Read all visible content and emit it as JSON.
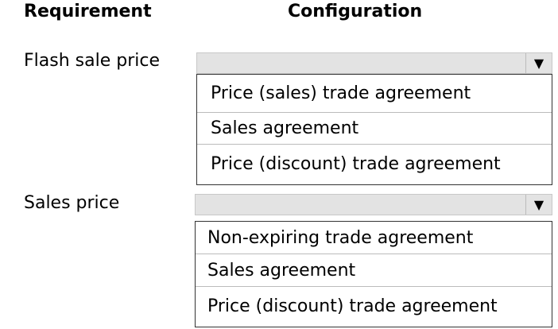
{
  "headers": {
    "requirement": "Requirement",
    "configuration": "Configuration"
  },
  "rows": [
    {
      "label": "Flash sale price",
      "options": [
        "Price (sales) trade agreement",
        "Sales agreement",
        "Price (discount) trade agreement"
      ]
    },
    {
      "label": "Sales price",
      "options": [
        "Non-expiring trade agreement",
        "Sales agreement",
        "Price (discount) trade agreement"
      ]
    }
  ],
  "dropdown_icon": "triangle-down"
}
